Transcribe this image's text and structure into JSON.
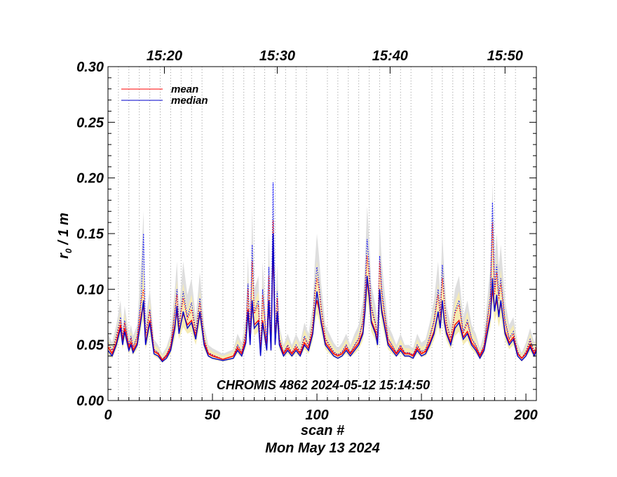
{
  "chart_data": {
    "type": "line",
    "title": "",
    "annotation": "CHROMIS 4862 2024-05-12 15:14:50",
    "xlabel": "scan #",
    "xlabel2": "Mon May 13 2024",
    "ylabel_main": "r",
    "ylabel_sub": "0",
    "ylabel_rest": " / 1 m",
    "xlim": [
      0,
      205
    ],
    "ylim": [
      0.0,
      0.3
    ],
    "x_ticks": [
      0,
      50,
      100,
      150,
      200
    ],
    "x_tick_labels": [
      "0",
      "50",
      "100",
      "150",
      "200"
    ],
    "y_ticks": [
      0.0,
      0.05,
      0.1,
      0.15,
      0.2,
      0.25,
      0.3
    ],
    "y_tick_labels": [
      "0.00",
      "0.05",
      "0.10",
      "0.15",
      "0.20",
      "0.25",
      "0.30"
    ],
    "top_axis": {
      "ticks": [
        27,
        81,
        135,
        190
      ],
      "labels": [
        "15:20",
        "15:30",
        "15:40",
        "15:50"
      ]
    },
    "grid": "vertical dotted lines every 5 scans",
    "legend_position": "top-left",
    "legend": [
      {
        "label": "mean",
        "color": "#ff0000"
      },
      {
        "label": "median",
        "color": "#0000cc"
      }
    ],
    "x": [
      0,
      2,
      4,
      6,
      7,
      8,
      10,
      11,
      12,
      14,
      16,
      17,
      18,
      20,
      22,
      24,
      26,
      28,
      30,
      32,
      33,
      34,
      36,
      38,
      40,
      42,
      44,
      46,
      48,
      50,
      55,
      60,
      62,
      64,
      66,
      67,
      68,
      69,
      70,
      72,
      73,
      74,
      76,
      77,
      78,
      79,
      80,
      81,
      82,
      84,
      86,
      88,
      90,
      92,
      94,
      96,
      98,
      99,
      100,
      101,
      102,
      104,
      106,
      108,
      110,
      112,
      114,
      116,
      118,
      120,
      122,
      123,
      124,
      125,
      126,
      128,
      129,
      130,
      131,
      132,
      134,
      136,
      138,
      140,
      142,
      144,
      146,
      148,
      150,
      152,
      154,
      156,
      158,
      159,
      160,
      161,
      162,
      164,
      166,
      168,
      170,
      172,
      174,
      176,
      178,
      180,
      182,
      183,
      184,
      185,
      186,
      187,
      188,
      190,
      192,
      194,
      196,
      198,
      200,
      202,
      204,
      205
    ],
    "series": [
      {
        "name": "median",
        "color": "#0000cc",
        "style": "solid",
        "values": [
          0.045,
          0.04,
          0.05,
          0.065,
          0.05,
          0.062,
          0.045,
          0.05,
          0.043,
          0.05,
          0.075,
          0.09,
          0.05,
          0.07,
          0.042,
          0.04,
          0.035,
          0.038,
          0.045,
          0.065,
          0.085,
          0.06,
          0.08,
          0.065,
          0.07,
          0.055,
          0.08,
          0.05,
          0.04,
          0.038,
          0.036,
          0.038,
          0.045,
          0.04,
          0.052,
          0.08,
          0.05,
          0.09,
          0.065,
          0.07,
          0.04,
          0.07,
          0.045,
          0.09,
          0.045,
          0.15,
          0.05,
          0.08,
          0.05,
          0.04,
          0.045,
          0.04,
          0.045,
          0.04,
          0.05,
          0.045,
          0.06,
          0.08,
          0.098,
          0.085,
          0.07,
          0.05,
          0.045,
          0.04,
          0.038,
          0.04,
          0.045,
          0.04,
          0.045,
          0.05,
          0.06,
          0.08,
          0.112,
          0.095,
          0.07,
          0.06,
          0.05,
          0.1,
          0.08,
          0.07,
          0.05,
          0.045,
          0.04,
          0.045,
          0.04,
          0.04,
          0.038,
          0.045,
          0.04,
          0.042,
          0.05,
          0.06,
          0.08,
          0.065,
          0.09,
          0.07,
          0.06,
          0.05,
          0.065,
          0.07,
          0.055,
          0.06,
          0.05,
          0.045,
          0.038,
          0.045,
          0.065,
          0.075,
          0.11,
          0.08,
          0.095,
          0.075,
          0.09,
          0.06,
          0.05,
          0.055,
          0.04,
          0.036,
          0.04,
          0.048,
          0.04,
          0.045
        ]
      },
      {
        "name": "mean",
        "color": "#ff0000",
        "style": "solid",
        "values": [
          0.048,
          0.042,
          0.052,
          0.068,
          0.052,
          0.065,
          0.047,
          0.052,
          0.045,
          0.052,
          0.078,
          0.085,
          0.052,
          0.072,
          0.044,
          0.042,
          0.036,
          0.04,
          0.047,
          0.068,
          0.08,
          0.062,
          0.078,
          0.068,
          0.072,
          0.057,
          0.078,
          0.052,
          0.042,
          0.04,
          0.037,
          0.04,
          0.047,
          0.042,
          0.055,
          0.082,
          0.052,
          0.088,
          0.068,
          0.072,
          0.042,
          0.072,
          0.047,
          0.088,
          0.047,
          0.14,
          0.052,
          0.078,
          0.052,
          0.042,
          0.047,
          0.042,
          0.047,
          0.042,
          0.052,
          0.047,
          0.062,
          0.082,
          0.09,
          0.082,
          0.072,
          0.052,
          0.047,
          0.042,
          0.04,
          0.042,
          0.047,
          0.042,
          0.047,
          0.052,
          0.062,
          0.082,
          0.108,
          0.092,
          0.072,
          0.062,
          0.052,
          0.098,
          0.082,
          0.072,
          0.052,
          0.047,
          0.042,
          0.047,
          0.042,
          0.042,
          0.04,
          0.047,
          0.042,
          0.044,
          0.052,
          0.062,
          0.078,
          0.068,
          0.088,
          0.072,
          0.062,
          0.052,
          0.068,
          0.072,
          0.057,
          0.062,
          0.052,
          0.047,
          0.04,
          0.047,
          0.068,
          0.078,
          0.1,
          0.082,
          0.09,
          0.078,
          0.088,
          0.062,
          0.052,
          0.057,
          0.042,
          0.038,
          0.042,
          0.05,
          0.042,
          0.047
        ]
      },
      {
        "name": "",
        "color": "#0000ff",
        "style": "dotted",
        "values": [
          0.052,
          0.045,
          0.058,
          0.075,
          0.056,
          0.072,
          0.05,
          0.058,
          0.048,
          0.058,
          0.095,
          0.15,
          0.06,
          0.082,
          0.046,
          0.043,
          0.037,
          0.041,
          0.05,
          0.08,
          0.1,
          0.068,
          0.098,
          0.075,
          0.088,
          0.062,
          0.092,
          0.056,
          0.043,
          0.041,
          0.037,
          0.04,
          0.05,
          0.044,
          0.062,
          0.105,
          0.058,
          0.14,
          0.08,
          0.09,
          0.044,
          0.1,
          0.05,
          0.12,
          0.05,
          0.196,
          0.058,
          0.098,
          0.056,
          0.043,
          0.05,
          0.043,
          0.05,
          0.044,
          0.058,
          0.05,
          0.07,
          0.1,
          0.12,
          0.105,
          0.085,
          0.056,
          0.05,
          0.044,
          0.041,
          0.044,
          0.05,
          0.043,
          0.05,
          0.056,
          0.072,
          0.1,
          0.145,
          0.12,
          0.085,
          0.07,
          0.058,
          0.13,
          0.1,
          0.085,
          0.056,
          0.05,
          0.043,
          0.05,
          0.043,
          0.043,
          0.041,
          0.05,
          0.044,
          0.046,
          0.058,
          0.072,
          0.1,
          0.078,
          0.122,
          0.09,
          0.07,
          0.056,
          0.08,
          0.09,
          0.062,
          0.072,
          0.056,
          0.05,
          0.041,
          0.05,
          0.08,
          0.095,
          0.178,
          0.1,
          0.122,
          0.095,
          0.11,
          0.072,
          0.056,
          0.062,
          0.044,
          0.038,
          0.044,
          0.055,
          0.044,
          0.05
        ]
      },
      {
        "name": "",
        "color": "#ff0000",
        "style": "dotted",
        "values": [
          0.05,
          0.044,
          0.056,
          0.072,
          0.055,
          0.07,
          0.049,
          0.056,
          0.047,
          0.056,
          0.09,
          0.1,
          0.058,
          0.08,
          0.045,
          0.043,
          0.037,
          0.041,
          0.049,
          0.078,
          0.095,
          0.066,
          0.092,
          0.073,
          0.082,
          0.06,
          0.088,
          0.055,
          0.043,
          0.041,
          0.037,
          0.04,
          0.049,
          0.043,
          0.06,
          0.1,
          0.056,
          0.125,
          0.078,
          0.086,
          0.043,
          0.095,
          0.049,
          0.112,
          0.049,
          0.162,
          0.056,
          0.092,
          0.055,
          0.043,
          0.049,
          0.043,
          0.049,
          0.043,
          0.056,
          0.049,
          0.068,
          0.095,
          0.11,
          0.1,
          0.082,
          0.055,
          0.049,
          0.043,
          0.041,
          0.043,
          0.049,
          0.043,
          0.049,
          0.055,
          0.07,
          0.095,
          0.13,
          0.11,
          0.082,
          0.068,
          0.056,
          0.125,
          0.095,
          0.082,
          0.055,
          0.049,
          0.043,
          0.049,
          0.043,
          0.043,
          0.041,
          0.049,
          0.043,
          0.045,
          0.056,
          0.07,
          0.095,
          0.075,
          0.11,
          0.086,
          0.068,
          0.055,
          0.078,
          0.086,
          0.06,
          0.07,
          0.055,
          0.049,
          0.041,
          0.049,
          0.078,
          0.09,
          0.16,
          0.095,
          0.115,
          0.09,
          0.105,
          0.07,
          0.055,
          0.06,
          0.043,
          0.038,
          0.043,
          0.053,
          0.043,
          0.049
        ]
      }
    ],
    "bands": [
      {
        "name": "",
        "color": "#dedede",
        "lower": [
          0.045,
          0.042,
          0.05,
          0.06,
          0.05,
          0.06,
          0.045,
          0.05,
          0.045,
          0.05,
          0.07,
          0.08,
          0.05,
          0.065,
          0.042,
          0.04,
          0.036,
          0.04,
          0.045,
          0.06,
          0.075,
          0.06,
          0.072,
          0.065,
          0.068,
          0.055,
          0.075,
          0.05,
          0.042,
          0.04,
          0.037,
          0.04,
          0.045,
          0.042,
          0.05,
          0.075,
          0.05,
          0.085,
          0.065,
          0.07,
          0.042,
          0.07,
          0.045,
          0.085,
          0.045,
          0.14,
          0.05,
          0.075,
          0.05,
          0.042,
          0.045,
          0.042,
          0.045,
          0.042,
          0.05,
          0.045,
          0.06,
          0.08,
          0.09,
          0.08,
          0.07,
          0.05,
          0.045,
          0.042,
          0.04,
          0.042,
          0.045,
          0.042,
          0.045,
          0.05,
          0.06,
          0.08,
          0.1,
          0.09,
          0.07,
          0.06,
          0.05,
          0.095,
          0.08,
          0.07,
          0.05,
          0.045,
          0.042,
          0.045,
          0.042,
          0.042,
          0.04,
          0.045,
          0.042,
          0.044,
          0.05,
          0.06,
          0.075,
          0.065,
          0.085,
          0.07,
          0.06,
          0.05,
          0.065,
          0.07,
          0.055,
          0.06,
          0.05,
          0.045,
          0.04,
          0.045,
          0.065,
          0.075,
          0.1,
          0.08,
          0.09,
          0.075,
          0.085,
          0.06,
          0.05,
          0.055,
          0.042,
          0.038,
          0.042,
          0.048,
          0.042,
          0.045
        ],
        "upper": [
          0.06,
          0.052,
          0.068,
          0.09,
          0.065,
          0.085,
          0.06,
          0.068,
          0.058,
          0.068,
          0.13,
          0.17,
          0.072,
          0.1,
          0.055,
          0.05,
          0.042,
          0.048,
          0.06,
          0.1,
          0.125,
          0.082,
          0.125,
          0.095,
          0.11,
          0.075,
          0.115,
          0.068,
          0.05,
          0.047,
          0.042,
          0.046,
          0.06,
          0.052,
          0.075,
          0.13,
          0.07,
          0.175,
          0.1,
          0.112,
          0.052,
          0.125,
          0.06,
          0.15,
          0.06,
          0.205,
          0.07,
          0.122,
          0.068,
          0.05,
          0.06,
          0.05,
          0.06,
          0.052,
          0.07,
          0.06,
          0.085,
          0.125,
          0.15,
          0.13,
          0.105,
          0.068,
          0.06,
          0.052,
          0.047,
          0.052,
          0.06,
          0.05,
          0.06,
          0.068,
          0.09,
          0.125,
          0.175,
          0.145,
          0.105,
          0.085,
          0.07,
          0.16,
          0.125,
          0.105,
          0.068,
          0.06,
          0.05,
          0.06,
          0.05,
          0.05,
          0.047,
          0.06,
          0.052,
          0.055,
          0.07,
          0.09,
          0.125,
          0.095,
          0.15,
          0.112,
          0.085,
          0.068,
          0.1,
          0.112,
          0.075,
          0.09,
          0.068,
          0.06,
          0.047,
          0.06,
          0.1,
          0.12,
          0.195,
          0.125,
          0.15,
          0.12,
          0.14,
          0.09,
          0.068,
          0.075,
          0.052,
          0.043,
          0.052,
          0.065,
          0.052,
          0.06
        ]
      },
      {
        "name": "",
        "color": "#f5ebb4",
        "lower": [
          0.042,
          0.038,
          0.046,
          0.058,
          0.046,
          0.056,
          0.042,
          0.046,
          0.041,
          0.046,
          0.066,
          0.072,
          0.046,
          0.06,
          0.04,
          0.038,
          0.034,
          0.037,
          0.042,
          0.056,
          0.068,
          0.055,
          0.066,
          0.06,
          0.062,
          0.05,
          0.068,
          0.046,
          0.039,
          0.037,
          0.035,
          0.037,
          0.042,
          0.039,
          0.047,
          0.068,
          0.046,
          0.075,
          0.058,
          0.062,
          0.039,
          0.062,
          0.042,
          0.075,
          0.042,
          0.12,
          0.046,
          0.068,
          0.046,
          0.039,
          0.042,
          0.039,
          0.042,
          0.039,
          0.046,
          0.042,
          0.054,
          0.07,
          0.078,
          0.072,
          0.062,
          0.046,
          0.042,
          0.039,
          0.037,
          0.039,
          0.042,
          0.039,
          0.042,
          0.046,
          0.054,
          0.07,
          0.09,
          0.08,
          0.062,
          0.054,
          0.046,
          0.085,
          0.07,
          0.062,
          0.046,
          0.042,
          0.039,
          0.042,
          0.039,
          0.039,
          0.037,
          0.042,
          0.039,
          0.04,
          0.046,
          0.054,
          0.068,
          0.058,
          0.075,
          0.062,
          0.054,
          0.046,
          0.058,
          0.062,
          0.05,
          0.054,
          0.046,
          0.042,
          0.037,
          0.042,
          0.058,
          0.066,
          0.09,
          0.07,
          0.078,
          0.066,
          0.075,
          0.054,
          0.046,
          0.05,
          0.039,
          0.035,
          0.039,
          0.044,
          0.039,
          0.042
        ],
        "upper": [
          0.055,
          0.048,
          0.062,
          0.08,
          0.06,
          0.078,
          0.055,
          0.062,
          0.053,
          0.062,
          0.1,
          0.12,
          0.066,
          0.09,
          0.05,
          0.047,
          0.04,
          0.045,
          0.055,
          0.09,
          0.108,
          0.074,
          0.105,
          0.082,
          0.095,
          0.068,
          0.098,
          0.062,
          0.047,
          0.044,
          0.04,
          0.044,
          0.055,
          0.048,
          0.068,
          0.112,
          0.064,
          0.14,
          0.088,
          0.098,
          0.048,
          0.105,
          0.055,
          0.125,
          0.055,
          0.17,
          0.064,
          0.102,
          0.062,
          0.047,
          0.055,
          0.047,
          0.055,
          0.048,
          0.064,
          0.055,
          0.076,
          0.105,
          0.125,
          0.11,
          0.09,
          0.062,
          0.055,
          0.048,
          0.044,
          0.048,
          0.055,
          0.047,
          0.055,
          0.062,
          0.08,
          0.105,
          0.14,
          0.12,
          0.09,
          0.076,
          0.064,
          0.135,
          0.105,
          0.09,
          0.062,
          0.055,
          0.047,
          0.055,
          0.047,
          0.047,
          0.044,
          0.055,
          0.048,
          0.05,
          0.064,
          0.08,
          0.105,
          0.085,
          0.125,
          0.098,
          0.076,
          0.062,
          0.088,
          0.098,
          0.068,
          0.08,
          0.062,
          0.055,
          0.044,
          0.055,
          0.088,
          0.1,
          0.165,
          0.105,
          0.128,
          0.1,
          0.118,
          0.08,
          0.062,
          0.068,
          0.048,
          0.041,
          0.048,
          0.06,
          0.048,
          0.055
        ]
      }
    ]
  }
}
